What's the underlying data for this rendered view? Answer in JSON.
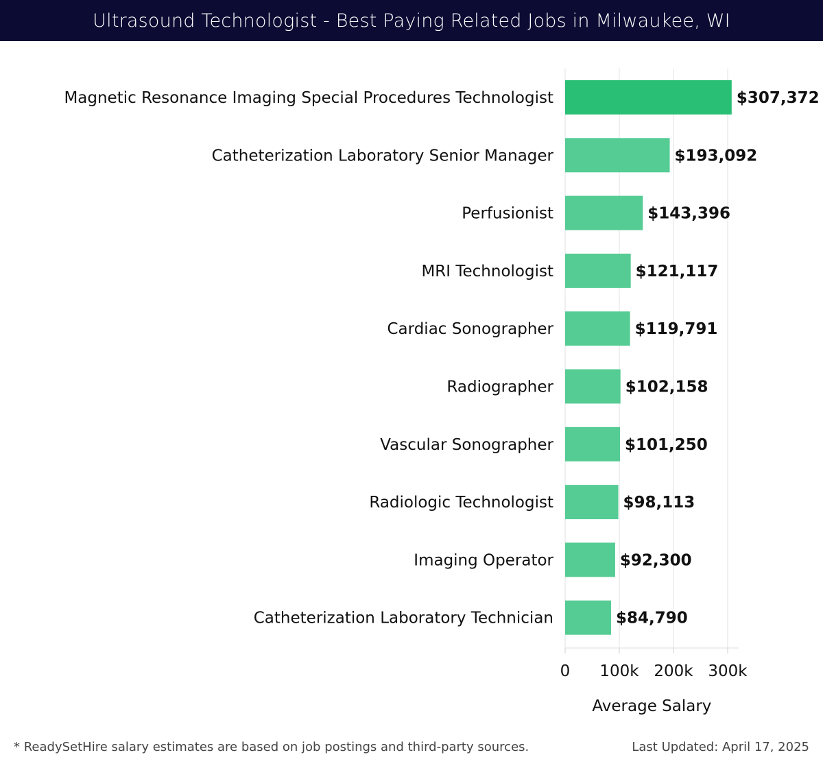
{
  "header": {
    "title": "Ultrasound Technologist - Best Paying Related Jobs in Milwaukee, WI"
  },
  "footer": {
    "note": "* ReadySetHire salary estimates are based on job postings and third-party sources.",
    "updated": "Last Updated: April 17, 2025"
  },
  "colors": {
    "header_bg": "#0b0b33",
    "bar_top": "#29bf74",
    "bar_rest": "#55cc94"
  },
  "chart_data": {
    "type": "bar",
    "orientation": "horizontal",
    "title": "",
    "xlabel": "Average Salary",
    "ylabel": "",
    "xlim": [
      0,
      320000
    ],
    "xticks": [
      0,
      100000,
      200000,
      300000
    ],
    "xtick_labels": [
      "0",
      "100k",
      "200k",
      "300k"
    ],
    "grid": "vertical",
    "categories": [
      "Magnetic Resonance Imaging Special Procedures Technologist",
      "Catheterization Laboratory Senior Manager",
      "Perfusionist",
      "MRI Technologist",
      "Cardiac Sonographer",
      "Radiographer",
      "Vascular Sonographer",
      "Radiologic Technologist",
      "Imaging Operator",
      "Catheterization Laboratory Technician"
    ],
    "values": [
      307372,
      193092,
      143396,
      121117,
      119791,
      102158,
      101250,
      98113,
      92300,
      84790
    ],
    "value_labels": [
      "$307,372",
      "$193,092",
      "$143,396",
      "$121,117",
      "$119,791",
      "$102,158",
      "$101,250",
      "$98,113",
      "$92,300",
      "$84,790"
    ]
  }
}
